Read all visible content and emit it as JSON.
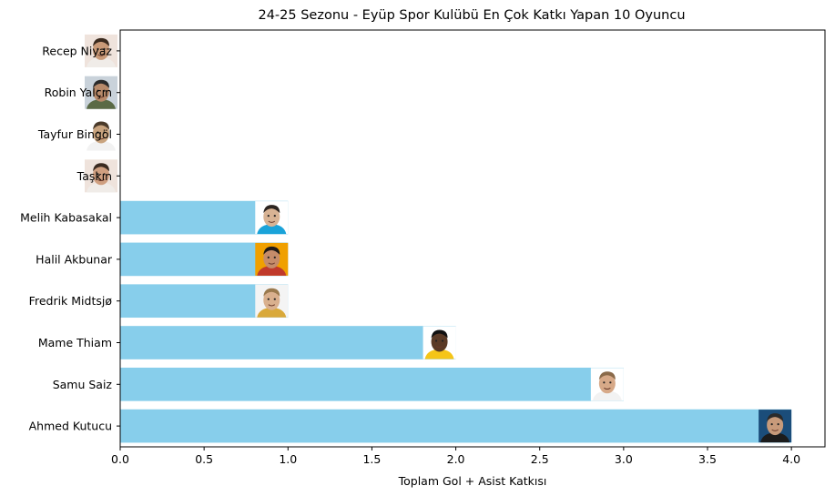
{
  "chart_data": {
    "type": "bar",
    "orientation": "horizontal",
    "title": "24-25 Sezonu - Eyüp Spor Kulübü En Çok Katkı Yapan 10 Oyuncu",
    "xlabel": "Toplam Gol + Asist Katkısı",
    "ylabel": "",
    "xlim": [
      0,
      4.2
    ],
    "x_ticks": [
      "0.0",
      "0.5",
      "1.0",
      "1.5",
      "2.0",
      "2.5",
      "3.0",
      "3.5",
      "4.0"
    ],
    "x_tick_values": [
      0,
      0.5,
      1.0,
      1.5,
      2.0,
      2.5,
      3.0,
      3.5,
      4.0
    ],
    "categories": [
      "Ahmed Kutucu",
      "Samu Saiz",
      "Mame Thiam",
      "Fredrik Midtsjø",
      "Halil Akbunar",
      "Melih Kabasakal",
      "Taşkın",
      "Tayfur Bingöl",
      "Robin Yalçın",
      "Recep Niyaz"
    ],
    "values": [
      4,
      3,
      2,
      1,
      1,
      1,
      0,
      0,
      0,
      0
    ],
    "bar_color": "#87ceeb",
    "grid": false,
    "legend": "none",
    "markers": "player-photo-icon"
  },
  "colors": {
    "skin": [
      "#c79a7a",
      "#d7a988",
      "#5a3a26",
      "#d9b08e",
      "#c58c6a",
      "#d8b394",
      "#cf9f80",
      "#c9a47f",
      "#b88a6a",
      "#c99a78"
    ],
    "hair": [
      "#2a2a2a",
      "#8a6a4a",
      "#111111",
      "#9a7a4e",
      "#1f1a17",
      "#2b2420",
      "#3a2a20",
      "#4a3a2a",
      "#2a2a2a",
      "#3a2a1e"
    ],
    "shirt": [
      "#1c1c1c",
      "#f2f2f2",
      "#f5c518",
      "#d9a93a",
      "#c0392b",
      "#1aa3d9",
      "#f0ece8",
      "#f2f2f2",
      "#5a6a45",
      "#f0ece8"
    ],
    "bg": [
      "#1b4d7a",
      "#ffffff",
      "#ffffff",
      "#f4f4f4",
      "#f0a000",
      "#ffffff",
      "#efe3dc",
      "#ffffff",
      "#c9d2da",
      "#efe3dc"
    ]
  }
}
